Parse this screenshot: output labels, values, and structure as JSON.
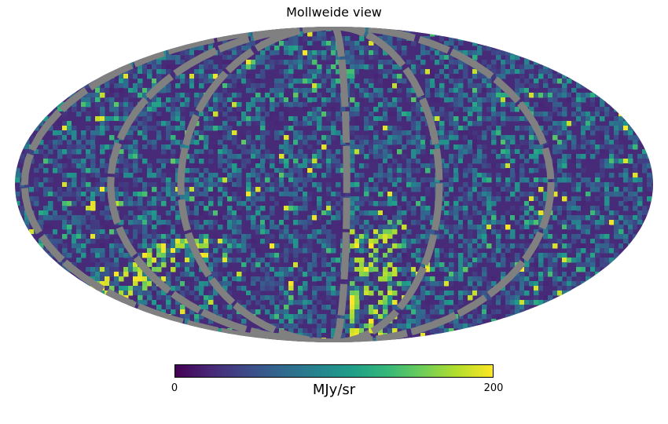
{
  "chart_data": {
    "type": "heatmap",
    "projection": "mollweide",
    "title": "Mollweide view",
    "colormap": "viridis",
    "bad_color": "#808080",
    "colorbar": {
      "orientation": "horizontal",
      "min": 0,
      "max": 200,
      "ticks": [
        "0",
        "200"
      ],
      "unit": "MJy/sr"
    },
    "value_distribution": "mostly 0-80 MJy/sr with scattered bright pixels near 200",
    "masked_bands": "curved grey (masked) stripes along meridians",
    "bright_regions": [
      "lower-left arc",
      "lower center near the bottom of the central meridian"
    ]
  }
}
